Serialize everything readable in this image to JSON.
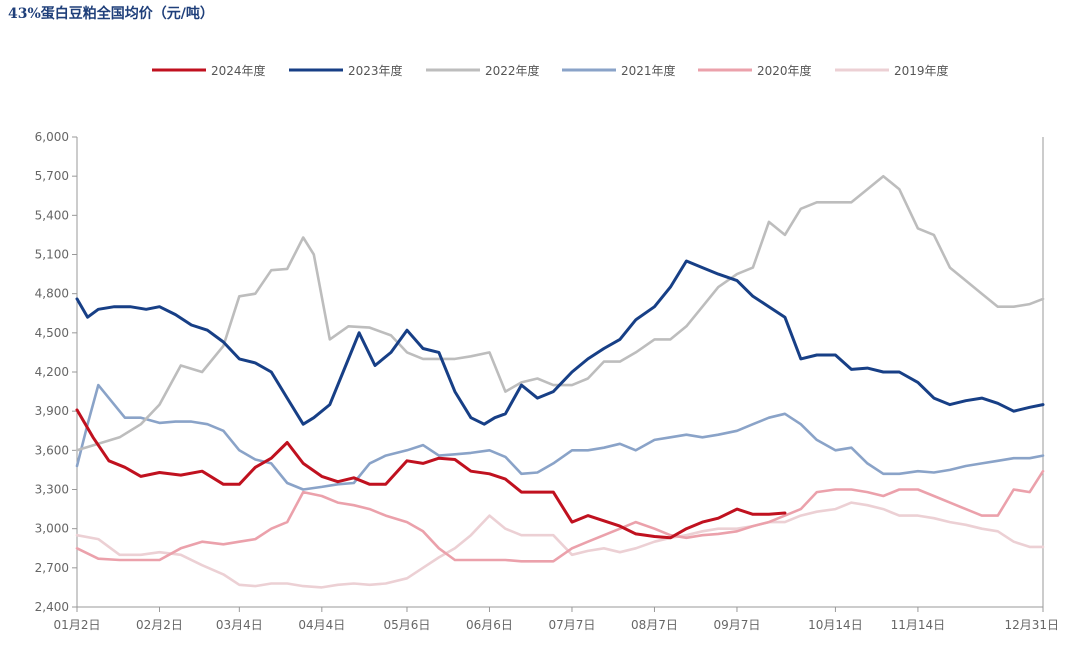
{
  "chart_data": {
    "type": "line",
    "title": "43%蛋白豆粕全国均价（元/吨）",
    "xlabel": "",
    "ylabel": "",
    "ylim": [
      2400,
      6000
    ],
    "y_ticks": [
      2400,
      2700,
      3000,
      3300,
      3600,
      3900,
      4200,
      4500,
      4800,
      5100,
      5400,
      5700,
      6000
    ],
    "y_tick_labels": [
      "2,400",
      "2,700",
      "3,000",
      "3,300",
      "3,600",
      "3,900",
      "4,200",
      "4,500",
      "4,800",
      "5,100",
      "5,400",
      "5,700",
      "6,000"
    ],
    "x_domain": [
      "01-02",
      "12-31"
    ],
    "x_ticks": [
      {
        "date": "01-02",
        "label": "01月2日"
      },
      {
        "date": "02-02",
        "label": "02月2日"
      },
      {
        "date": "03-04",
        "label": "03月4日"
      },
      {
        "date": "04-04",
        "label": "04月4日"
      },
      {
        "date": "05-06",
        "label": "05月6日"
      },
      {
        "date": "06-06",
        "label": "06月6日"
      },
      {
        "date": "07-07",
        "label": "07月7日"
      },
      {
        "date": "08-07",
        "label": "08月7日"
      },
      {
        "date": "09-07",
        "label": "09月7日"
      },
      {
        "date": "10-14",
        "label": "10月14日"
      },
      {
        "date": "11-14",
        "label": "11月14日"
      },
      {
        "date": "12-31",
        "label": "12月31日"
      }
    ],
    "grid": false,
    "legend_position": "top",
    "series": [
      {
        "name": "2024年度",
        "color": "#c0111f",
        "width": 3.0,
        "x": [
          "01-02",
          "01-08",
          "01-14",
          "01-20",
          "01-26",
          "02-02",
          "02-10",
          "02-18",
          "02-26",
          "03-04",
          "03-10",
          "03-16",
          "03-22",
          "03-28",
          "04-04",
          "04-10",
          "04-16",
          "04-22",
          "04-28",
          "05-06",
          "05-12",
          "05-18",
          "05-24",
          "05-30",
          "06-06",
          "06-12",
          "06-18",
          "06-24",
          "06-30",
          "07-07",
          "07-13",
          "07-19",
          "07-25",
          "07-31",
          "08-07",
          "08-13",
          "08-19",
          "08-25",
          "08-31",
          "09-07",
          "09-13",
          "09-19",
          "09-25"
        ],
        "y": [
          3910,
          3700,
          3520,
          3470,
          3400,
          3430,
          3410,
          3440,
          3340,
          3340,
          3470,
          3540,
          3660,
          3500,
          3400,
          3360,
          3390,
          3340,
          3340,
          3520,
          3500,
          3540,
          3530,
          3440,
          3420,
          3380,
          3280,
          3280,
          3280,
          3050,
          3100,
          3060,
          3020,
          2960,
          2940,
          2930,
          3000,
          3050,
          3080,
          3150,
          3110,
          3110,
          3120
        ]
      },
      {
        "name": "2023年度",
        "color": "#173f86",
        "width": 3.0,
        "x": [
          "01-02",
          "01-06",
          "01-10",
          "01-16",
          "01-22",
          "01-28",
          "02-02",
          "02-08",
          "02-14",
          "02-20",
          "02-26",
          "03-04",
          "03-10",
          "03-16",
          "03-22",
          "03-28",
          "04-01",
          "04-07",
          "04-12",
          "04-18",
          "04-24",
          "04-30",
          "05-06",
          "05-12",
          "05-18",
          "05-24",
          "05-30",
          "06-04",
          "06-08",
          "06-12",
          "06-18",
          "06-24",
          "06-30",
          "07-07",
          "07-13",
          "07-19",
          "07-25",
          "07-31",
          "08-07",
          "08-13",
          "08-19",
          "08-25",
          "08-31",
          "09-07",
          "09-13",
          "09-19",
          "09-25",
          "10-01",
          "10-07",
          "10-14",
          "10-20",
          "10-26",
          "11-01",
          "11-07",
          "11-14",
          "11-20",
          "11-26",
          "12-02",
          "12-08",
          "12-14",
          "12-20",
          "12-26",
          "12-31"
        ],
        "y": [
          4760,
          4620,
          4680,
          4700,
          4700,
          4680,
          4700,
          4640,
          4560,
          4520,
          4430,
          4300,
          4270,
          4200,
          4000,
          3800,
          3850,
          3950,
          4200,
          4500,
          4250,
          4350,
          4520,
          4380,
          4350,
          4050,
          3850,
          3800,
          3850,
          3880,
          4100,
          4000,
          4050,
          4200,
          4300,
          4380,
          4450,
          4600,
          4700,
          4850,
          5050,
          5000,
          4950,
          4900,
          4780,
          4700,
          4620,
          4300,
          4330,
          4330,
          4220,
          4230,
          4200,
          4200,
          4120,
          4000,
          3950,
          3980,
          4000,
          3960,
          3900,
          3930,
          3950
        ]
      },
      {
        "name": "2022年度",
        "color": "#bdbdbd",
        "width": 2.6,
        "x": [
          "01-02",
          "01-10",
          "01-18",
          "01-26",
          "02-02",
          "02-10",
          "02-18",
          "02-26",
          "03-04",
          "03-10",
          "03-16",
          "03-22",
          "03-28",
          "04-01",
          "04-07",
          "04-14",
          "04-22",
          "04-30",
          "05-06",
          "05-12",
          "05-18",
          "05-24",
          "05-30",
          "06-06",
          "06-12",
          "06-18",
          "06-24",
          "06-30",
          "07-07",
          "07-13",
          "07-19",
          "07-25",
          "07-31",
          "08-07",
          "08-13",
          "08-19",
          "08-25",
          "08-31",
          "09-07",
          "09-13",
          "09-19",
          "09-25",
          "10-01",
          "10-07",
          "10-14",
          "10-20",
          "10-26",
          "11-01",
          "11-07",
          "11-14",
          "11-20",
          "11-26",
          "12-02",
          "12-08",
          "12-14",
          "12-20",
          "12-26",
          "12-31"
        ],
        "y": [
          3600,
          3650,
          3700,
          3800,
          3950,
          4250,
          4200,
          4400,
          4780,
          4800,
          4980,
          4990,
          5230,
          5100,
          4450,
          4550,
          4540,
          4480,
          4350,
          4300,
          4300,
          4300,
          4320,
          4350,
          4050,
          4120,
          4150,
          4100,
          4100,
          4150,
          4280,
          4280,
          4350,
          4450,
          4450,
          4550,
          4700,
          4850,
          4950,
          5000,
          5350,
          5250,
          5450,
          5500,
          5500,
          5500,
          5600,
          5700,
          5600,
          5300,
          5250,
          5000,
          4900,
          4800,
          4700,
          4700,
          4720,
          4760
        ]
      },
      {
        "name": "2021年度",
        "color": "#8aa3c8",
        "width": 2.6,
        "x": [
          "01-02",
          "01-06",
          "01-10",
          "01-14",
          "01-20",
          "01-26",
          "02-02",
          "02-08",
          "02-14",
          "02-20",
          "02-26",
          "03-04",
          "03-10",
          "03-16",
          "03-22",
          "03-28",
          "04-04",
          "04-10",
          "04-16",
          "04-22",
          "04-28",
          "05-06",
          "05-12",
          "05-18",
          "05-24",
          "05-30",
          "06-06",
          "06-12",
          "06-18",
          "06-24",
          "06-30",
          "07-07",
          "07-13",
          "07-19",
          "07-25",
          "07-31",
          "08-07",
          "08-13",
          "08-19",
          "08-25",
          "08-31",
          "09-07",
          "09-13",
          "09-19",
          "09-25",
          "10-01",
          "10-07",
          "10-14",
          "10-20",
          "10-26",
          "11-01",
          "11-07",
          "11-14",
          "11-20",
          "11-26",
          "12-02",
          "12-08",
          "12-14",
          "12-20",
          "12-26",
          "12-31"
        ],
        "y": [
          3480,
          3800,
          4100,
          4000,
          3850,
          3850,
          3810,
          3820,
          3820,
          3800,
          3750,
          3600,
          3530,
          3500,
          3350,
          3300,
          3320,
          3340,
          3350,
          3500,
          3560,
          3600,
          3640,
          3560,
          3570,
          3580,
          3600,
          3550,
          3420,
          3430,
          3500,
          3600,
          3600,
          3620,
          3650,
          3600,
          3680,
          3700,
          3720,
          3700,
          3720,
          3750,
          3800,
          3850,
          3880,
          3800,
          3680,
          3600,
          3620,
          3500,
          3420,
          3420,
          3440,
          3430,
          3450,
          3480,
          3500,
          3520,
          3540,
          3540,
          3560
        ]
      },
      {
        "name": "2020年度",
        "color": "#eba1ab",
        "width": 2.6,
        "x": [
          "01-02",
          "01-10",
          "01-18",
          "01-26",
          "02-02",
          "02-10",
          "02-18",
          "02-26",
          "03-04",
          "03-10",
          "03-16",
          "03-22",
          "03-28",
          "04-04",
          "04-10",
          "04-16",
          "04-22",
          "04-28",
          "05-06",
          "05-12",
          "05-18",
          "05-24",
          "05-30",
          "06-06",
          "06-12",
          "06-18",
          "06-24",
          "06-30",
          "07-07",
          "07-13",
          "07-19",
          "07-25",
          "07-31",
          "08-07",
          "08-13",
          "08-19",
          "08-25",
          "08-31",
          "09-07",
          "09-13",
          "09-19",
          "09-25",
          "10-01",
          "10-07",
          "10-14",
          "10-20",
          "10-26",
          "11-01",
          "11-07",
          "11-14",
          "11-20",
          "11-26",
          "12-02",
          "12-08",
          "12-14",
          "12-20",
          "12-26",
          "12-31"
        ],
        "y": [
          2850,
          2770,
          2760,
          2760,
          2760,
          2850,
          2900,
          2880,
          2900,
          2920,
          3000,
          3050,
          3280,
          3250,
          3200,
          3180,
          3150,
          3100,
          3050,
          2980,
          2850,
          2760,
          2760,
          2760,
          2760,
          2750,
          2750,
          2750,
          2850,
          2900,
          2950,
          3000,
          3050,
          3000,
          2950,
          2930,
          2950,
          2960,
          2980,
          3020,
          3050,
          3100,
          3150,
          3280,
          3300,
          3300,
          3280,
          3250,
          3300,
          3300,
          3250,
          3200,
          3150,
          3100,
          3100,
          3300,
          3280,
          3440
        ]
      },
      {
        "name": "2019年度",
        "color": "#ecd0d4",
        "width": 2.6,
        "x": [
          "01-02",
          "01-10",
          "01-18",
          "01-26",
          "02-02",
          "02-10",
          "02-18",
          "02-26",
          "03-04",
          "03-10",
          "03-16",
          "03-22",
          "03-28",
          "04-04",
          "04-10",
          "04-16",
          "04-22",
          "04-28",
          "05-06",
          "05-12",
          "05-18",
          "05-24",
          "05-30",
          "06-06",
          "06-12",
          "06-18",
          "06-24",
          "06-30",
          "07-07",
          "07-13",
          "07-19",
          "07-25",
          "07-31",
          "08-07",
          "08-13",
          "08-19",
          "08-25",
          "08-31",
          "09-07",
          "09-13",
          "09-19",
          "09-25",
          "10-01",
          "10-07",
          "10-14",
          "10-20",
          "10-26",
          "11-01",
          "11-07",
          "11-14",
          "11-20",
          "11-26",
          "12-02",
          "12-08",
          "12-14",
          "12-20",
          "12-26",
          "12-31"
        ],
        "y": [
          2950,
          2920,
          2800,
          2800,
          2820,
          2800,
          2720,
          2650,
          2570,
          2560,
          2580,
          2580,
          2560,
          2550,
          2570,
          2580,
          2570,
          2580,
          2620,
          2700,
          2780,
          2850,
          2950,
          3100,
          3000,
          2950,
          2950,
          2950,
          2800,
          2830,
          2850,
          2820,
          2850,
          2900,
          2930,
          2950,
          2980,
          3000,
          3000,
          3020,
          3050,
          3050,
          3100,
          3130,
          3150,
          3200,
          3180,
          3150,
          3100,
          3100,
          3080,
          3050,
          3030,
          3000,
          2980,
          2900,
          2860,
          2860
        ]
      }
    ]
  }
}
